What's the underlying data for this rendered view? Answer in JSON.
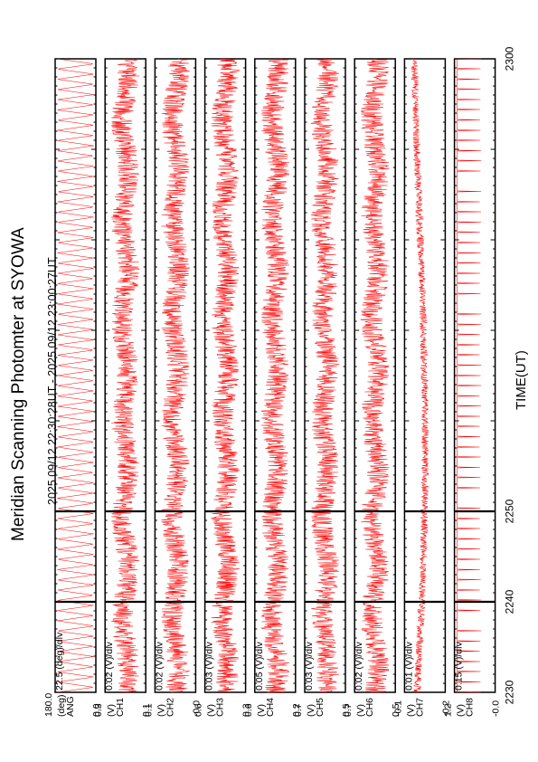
{
  "chart_data": {
    "type": "line",
    "title": "Meridian Scanning Photomter at SYOWA",
    "subtitle": "2025 09/12 22:30:28UT - 2025 09/12 23:00:27UT",
    "xlabel": "TIME(UT)",
    "xlim": [
      2230,
      2300
    ],
    "x_ticks": [
      "2230",
      "2240",
      "2250",
      "2300"
    ],
    "orientation": "rotated-90-ccw",
    "panels": [
      {
        "scale": "22.5 (deg)/div",
        "y_ticks": [
          "180.0",
          "0.0"
        ],
        "units": [
          "(deg)",
          "ANG"
        ],
        "style": "sawtooth",
        "ylim": [
          0,
          180
        ]
      },
      {
        "scale": "0.02 (V)/div",
        "y_ticks": [
          "0.3",
          "0.1"
        ],
        "units": [
          "(V)",
          "CH1"
        ],
        "style": "noise",
        "ylim": [
          0.1,
          0.3
        ]
      },
      {
        "scale": "0.02 (V)/div",
        "y_ticks": [
          "0.1",
          "-0.0"
        ],
        "units": [
          "(V)",
          "CH2"
        ],
        "style": "noise",
        "ylim": [
          0.0,
          0.1
        ]
      },
      {
        "scale": "0.03 (V)/div",
        "y_ticks": [
          "0.6",
          "0.3"
        ],
        "units": [
          "(V)",
          "CH3"
        ],
        "style": "noise",
        "ylim": [
          0.3,
          0.6
        ]
      },
      {
        "scale": "0.05 (V)/div",
        "y_ticks": [
          "0.6",
          "0.2"
        ],
        "units": [
          "(V)",
          "CH4"
        ],
        "style": "noise",
        "ylim": [
          0.2,
          0.6
        ]
      },
      {
        "scale": "0.03 (V)/div",
        "y_ticks": [
          "0.7",
          "0.5"
        ],
        "units": [
          "(V)",
          "CH5"
        ],
        "style": "noise",
        "ylim": [
          0.5,
          0.7
        ]
      },
      {
        "scale": "0.02 (V)/div",
        "y_ticks": [
          "0.7",
          "0.5"
        ],
        "units": [
          "(V)",
          "CH6"
        ],
        "style": "noise",
        "ylim": [
          0.5,
          0.7
        ]
      },
      {
        "scale": "0.01 (V)/div",
        "y_ticks": [
          "-0.1",
          "-0.2"
        ],
        "units": [
          "(V)",
          "CH7"
        ],
        "style": "drift",
        "ylim": [
          -0.2,
          -0.1
        ]
      },
      {
        "scale": "0.15 (V)/div",
        "y_ticks": [
          "1.2",
          "-0.0"
        ],
        "units": [
          "(V)",
          "CH8"
        ],
        "style": "spikes",
        "ylim": [
          0.0,
          1.2
        ]
      }
    ],
    "grid": false,
    "series_color": "#ff0000"
  }
}
